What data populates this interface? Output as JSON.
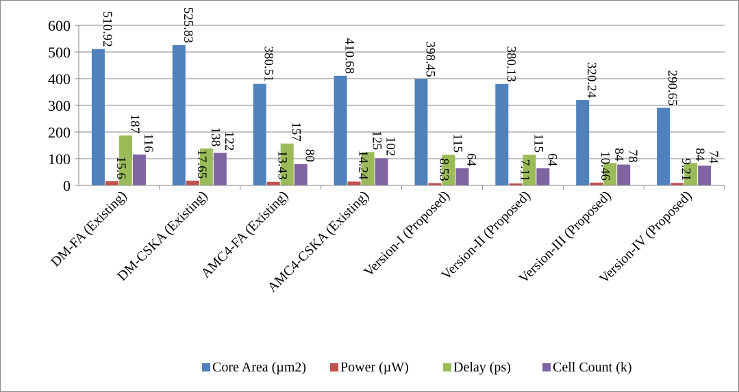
{
  "chart_data": {
    "type": "bar",
    "title": "",
    "xlabel": "",
    "ylabel": "",
    "categories": [
      "DM-FA  (Existing)",
      "DM-CSKA (Existing)",
      "AMC4-FA (Existing)",
      "AMC4-CSKA (Existing)",
      "Version-I (Proposed)",
      "Version-II (Proposed)",
      "Version-III (Proposed)",
      "Version-IV (Proposed)"
    ],
    "series": [
      {
        "name": "Core Area (µm2)",
        "color": "#4F81BD",
        "values": [
          510.92,
          525.83,
          380.51,
          410.68,
          398.45,
          380.13,
          320.24,
          290.65
        ],
        "labels": [
          "510.92",
          "525.83",
          "380.51",
          "410.68",
          "398.45",
          "380.13",
          "320.24",
          "290.65"
        ]
      },
      {
        "name": "Power (µW)",
        "color": "#C0504D",
        "values": [
          15.6,
          17.65,
          13.43,
          14.24,
          8.53,
          7.11,
          10.46,
          9.21
        ],
        "labels": [
          "15.6",
          "17.65",
          "13.43",
          "14.24",
          "8.53",
          "7.11",
          "10.46",
          "9.21"
        ]
      },
      {
        "name": "Delay (ps)",
        "color": "#9BBB59",
        "values": [
          187,
          138,
          157,
          125,
          115,
          115,
          84,
          84
        ],
        "labels": [
          "187",
          "138",
          "157",
          "125",
          "115",
          "115",
          "84",
          "84"
        ]
      },
      {
        "name": "Cell Count (k)",
        "color": "#8064A2",
        "values": [
          116,
          122,
          80,
          102,
          64,
          64,
          78,
          74
        ],
        "labels": [
          "116",
          "122",
          "80",
          "102",
          "64",
          "64",
          "78",
          "74"
        ]
      }
    ],
    "ylim": [
      0,
      600
    ],
    "yticks": [
      "0",
      "100",
      "200",
      "300",
      "400",
      "500",
      "600"
    ],
    "grid": true,
    "legend_position": "bottom"
  }
}
